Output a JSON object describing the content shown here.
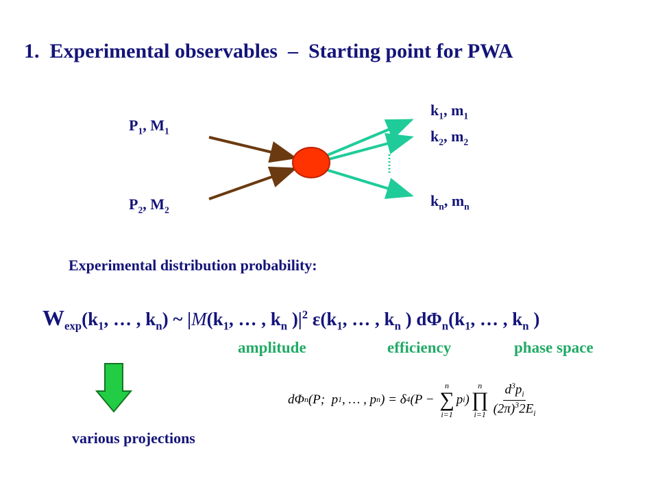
{
  "title": "1.  Experimental observables  –  Starting point for PWA",
  "diagram": {
    "incoming": [
      [
        "P",
        "1",
        ", M",
        "1"
      ],
      [
        "P",
        "2",
        ", M",
        "2"
      ]
    ],
    "outgoing": [
      [
        "k",
        "1",
        ", m",
        "1"
      ],
      [
        "k",
        "2",
        ", m",
        "2"
      ],
      [
        "k",
        "n",
        ", m",
        "n"
      ]
    ]
  },
  "caption": "Experimental distribution probability:",
  "formula": [
    "W",
    "exp",
    "(k",
    "1",
    ", … , k",
    "n",
    ") ~ |",
    "M",
    "(k",
    "1",
    ", … , k",
    "n",
    " )|",
    "2",
    " ε(k",
    "1",
    ", … , k",
    "n",
    " ) dΦ",
    "n",
    "(k",
    "1",
    ", … , k",
    "n",
    " )"
  ],
  "formula_labels": [
    "amplitude",
    "efficiency",
    "phase space"
  ],
  "projections": "various projections",
  "phase_space_formula": {
    "lhs": [
      "dΦ",
      "n",
      "(P;  p",
      "1",
      ", … , p",
      "n",
      ") = δ",
      "4",
      "(P − "
    ],
    "sum": [
      "n",
      "∑",
      "i=1"
    ],
    "sum_term": [
      "p",
      "i",
      ")"
    ],
    "prod": [
      "n",
      "∏",
      "i=1"
    ],
    "numerator": [
      "d",
      "3",
      "p",
      "i"
    ],
    "denominator": [
      "(2π)",
      "3",
      "2E",
      "i"
    ]
  }
}
